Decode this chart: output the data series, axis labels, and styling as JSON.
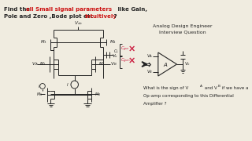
{
  "bg_color": "#f0ece0",
  "red_color": "#cc1111",
  "black_color": "#222222",
  "pink_color": "#cc2244",
  "gray_color": "#888888",
  "right_title1": "Analog Design Engineer",
  "right_title2": "Interview Question",
  "bottom_q1": "What is the sign of V",
  "bottom_q1b": "A",
  "bottom_q2": " and V",
  "bottom_q2b": "B",
  "bottom_q3": " if we have a",
  "bottom_q4": "Op-amp corresponding to this Differential",
  "bottom_q5": "Amplifier ?"
}
